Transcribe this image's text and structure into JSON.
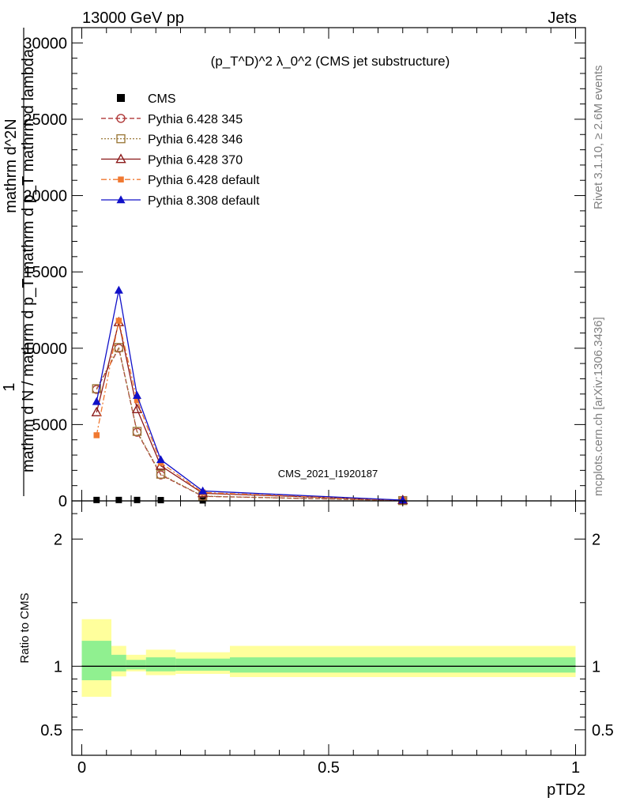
{
  "header": {
    "left": "13000 GeV pp",
    "right": "Jets"
  },
  "plot_title": "(p_T^D)^2 λ_0^2 (CMS jet substructure)",
  "side_labels": {
    "rivet": "Rivet 3.1.10, ≥ 2.6M events",
    "mcplots": "mcplots.cern.ch [arXiv:1306.3436]"
  },
  "watermark": "CMS_2021_I1920187",
  "xlabel": "pTD2",
  "ylabel_main": {
    "numerator": "1",
    "line1": "mathrm d^2N",
    "line2": "mathrm d N / mathrm d p_T mathrm d p_T mathrm d lambda"
  },
  "ylabel_ratio": "Ratio to CMS",
  "legend": [
    {
      "label": "CMS",
      "color": "#000000",
      "marker": "square-filled",
      "line": "none"
    },
    {
      "label": "Pythia 6.428 345",
      "color": "#b03a3a",
      "marker": "circle-open",
      "line": "dashed"
    },
    {
      "label": "Pythia 6.428 346",
      "color": "#9c7a3c",
      "marker": "square-open",
      "line": "dotted"
    },
    {
      "label": "Pythia 6.428 370",
      "color": "#8b1a1a",
      "marker": "triangle-open",
      "line": "solid"
    },
    {
      "label": "Pythia 6.428 default",
      "color": "#f07830",
      "marker": "square-filled-small",
      "line": "dashdot"
    },
    {
      "label": "Pythia 8.308 default",
      "color": "#1010c8",
      "marker": "triangle-filled",
      "line": "solid"
    }
  ],
  "chart_data": [
    {
      "type": "line",
      "panel": "main",
      "xlim": [
        -0.02,
        1.02
      ],
      "ylim": [
        0,
        31000
      ],
      "y_ticks": [
        0,
        5000,
        10000,
        15000,
        20000,
        25000,
        30000
      ],
      "y_tick_labels": [
        "0",
        "5000",
        "10000",
        "15000",
        "20000",
        "25000",
        "30000"
      ],
      "x": [
        0.03,
        0.075,
        0.112,
        0.16,
        0.245,
        0.65
      ],
      "series": [
        {
          "name": "CMS",
          "values": [
            60,
            60,
            60,
            50,
            30,
            5
          ]
        },
        {
          "name": "Pythia 6.428 345",
          "values": [
            7300,
            10000,
            4500,
            1700,
            300,
            20
          ]
        },
        {
          "name": "Pythia 6.428 346",
          "values": [
            7350,
            10050,
            4550,
            1750,
            310,
            20
          ]
        },
        {
          "name": "Pythia 6.428 370",
          "values": [
            5800,
            11700,
            6000,
            2300,
            500,
            40
          ]
        },
        {
          "name": "Pythia 6.428 default",
          "values": [
            4300,
            11800,
            6600,
            2500,
            550,
            40
          ]
        },
        {
          "name": "Pythia 8.308 default",
          "values": [
            6500,
            13800,
            6900,
            2700,
            650,
            50
          ]
        }
      ]
    },
    {
      "type": "area",
      "panel": "ratio",
      "xlim": [
        -0.02,
        1.02
      ],
      "ylim": [
        0.3,
        2.3
      ],
      "y_ticks": [
        0.5,
        1,
        2
      ],
      "y_tick_labels": [
        "0.5",
        "1",
        "2"
      ],
      "x_ticks": [
        0,
        0.5,
        1
      ],
      "x_tick_labels": [
        "0",
        "0.5",
        "1"
      ],
      "bins": [
        0,
        0.06,
        0.09,
        0.13,
        0.19,
        0.3,
        1.0
      ],
      "band_inner": {
        "color": "#90f090",
        "lo": [
          0.89,
          0.96,
          0.975,
          0.96,
          0.965,
          0.95
        ],
        "hi": [
          1.2,
          1.09,
          1.05,
          1.07,
          1.06,
          1.07
        ]
      },
      "band_outer": {
        "color": "#ffff9c",
        "lo": [
          0.76,
          0.92,
          0.96,
          0.93,
          0.94,
          0.915
        ],
        "hi": [
          1.37,
          1.16,
          1.09,
          1.13,
          1.11,
          1.16
        ]
      },
      "reference_line": 1
    }
  ]
}
